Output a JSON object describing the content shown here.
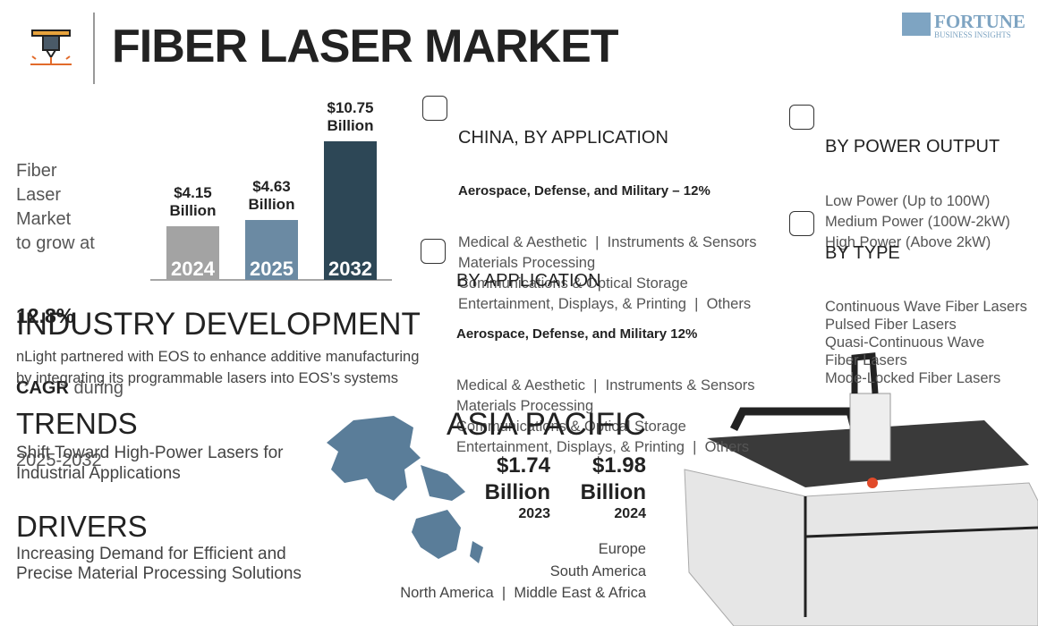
{
  "header": {
    "title": "FIBER LASER MARKET",
    "logo": "FORTUNE",
    "logo_sub": "BUSINESS INSIGHTS"
  },
  "growth": {
    "lines": [
      "Fiber",
      "Laser",
      "Market",
      "to grow at"
    ],
    "rate": "12.8%",
    "cagr": "CAGR",
    "during": "during",
    "period": "2025-2032"
  },
  "chart_data": {
    "type": "bar",
    "categories": [
      "2024",
      "2025",
      "2032"
    ],
    "values": [
      4.15,
      4.63,
      10.75
    ],
    "value_labels": [
      "$4.15 Billion",
      "$4.63 Billion",
      "$10.75 Billion"
    ],
    "colors": [
      "#a3a3a3",
      "#6b8aa3",
      "#2d4756"
    ]
  },
  "industry": {
    "title": "INDUSTRY DEVELOPMENT",
    "text": "nLight partnered with EOS to enhance additive manufacturing by integrating its programmable lasers into EOS’s systems"
  },
  "trends": {
    "title": "TRENDS",
    "text": "Shift Toward High-Power Lasers for Industrial Applications"
  },
  "drivers": {
    "title": "DRIVERS",
    "text": "Increasing Demand for Efficient and Precise Material Processing Solutions"
  },
  "china": {
    "title": "CHINA, BY APPLICATION",
    "lead": "Aerospace, Defense, and Military – 12%",
    "items": [
      "Medical & Aesthetic  |  Instruments & Sensors",
      "Materials Processing",
      "Communications & Optical Storage",
      "Entertainment, Displays, & Printing  |  Others"
    ]
  },
  "application": {
    "title": "BY APPLICATION",
    "lead": "Aerospace, Defense, and Military 12%",
    "items": [
      "Medical & Aesthetic  |  Instruments & Sensors",
      "Materials Processing",
      "Communications & Optical Storage",
      "Entertainment, Displays, & Printing  |  Others"
    ]
  },
  "power": {
    "title": "BY POWER OUTPUT",
    "items": [
      "Low Power (Up to 100W)",
      "Medium Power (100W-2kW)",
      "High Power (Above 2kW)"
    ]
  },
  "type": {
    "title": "BY TYPE",
    "items": [
      "Continuous Wave Fiber Lasers",
      "Pulsed Fiber Lasers",
      "Quasi-Continuous Wave Fiber Lasers",
      "Mode-Locked Fiber Lasers"
    ]
  },
  "region": {
    "title": "ASIA PACIFIC",
    "figures": [
      {
        "value": "$1.74 Billion",
        "year": "2023"
      },
      {
        "value": "$1.98 Billion",
        "year": "2024"
      }
    ],
    "others": [
      "Europe",
      "South America",
      "North America  |  Middle East & Africa"
    ]
  }
}
